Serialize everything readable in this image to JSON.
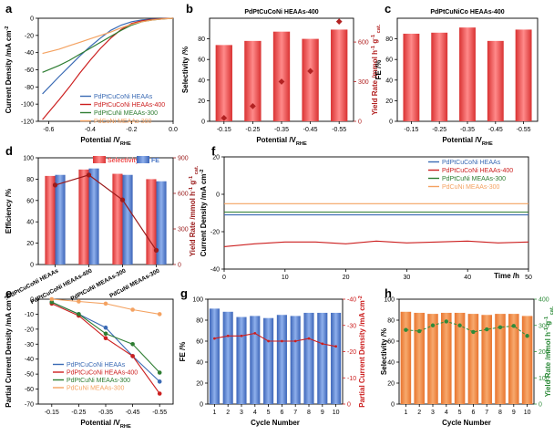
{
  "chart_data": [
    {
      "id": "a",
      "type": "line",
      "panel_letter": "a",
      "xlabel": "Potential /V",
      "xlabel_sub": "RHE",
      "ylabel": "Current Density /mA cm",
      "ylabel_sup": "-2",
      "xlim": [
        -0.65,
        0.0
      ],
      "ylim": [
        -120,
        0
      ],
      "xticks": [
        -0.6,
        -0.4,
        -0.2,
        0.0
      ],
      "xtick_labels": [
        "-0.6",
        "-0.4",
        "-0.2",
        "0.0"
      ],
      "yticks": [
        -120,
        -100,
        -80,
        -60,
        -40,
        -20,
        0
      ],
      "series": [
        {
          "name": "PdPtCuCoNi HEAAs",
          "color": "#3a6ab4",
          "x": [
            -0.63,
            -0.55,
            -0.5,
            -0.45,
            -0.4,
            -0.35,
            -0.3,
            -0.25,
            -0.2,
            -0.15,
            -0.1,
            -0.05,
            0.0
          ],
          "y": [
            -88,
            -68,
            -56,
            -44,
            -33,
            -23,
            -14,
            -8,
            -4,
            -2,
            -1,
            -0.5,
            0
          ]
        },
        {
          "name": "PdPtCuCoNi HEAAs-400",
          "color": "#cc1f1f",
          "x": [
            -0.63,
            -0.55,
            -0.5,
            -0.45,
            -0.4,
            -0.35,
            -0.3,
            -0.25,
            -0.2,
            -0.15,
            -0.1,
            -0.05,
            0.0
          ],
          "y": [
            -118,
            -95,
            -80,
            -64,
            -49,
            -35,
            -23,
            -13,
            -6,
            -3,
            -1.5,
            -0.5,
            0
          ]
        },
        {
          "name": "PdPtCuNi MEAAs-300",
          "color": "#2e7d32",
          "x": [
            -0.63,
            -0.55,
            -0.5,
            -0.45,
            -0.4,
            -0.35,
            -0.3,
            -0.25,
            -0.2,
            -0.15,
            -0.1,
            -0.05,
            0.0
          ],
          "y": [
            -63,
            -55,
            -49,
            -42,
            -35,
            -28,
            -21,
            -14,
            -8,
            -4,
            -2,
            -0.8,
            0
          ]
        },
        {
          "name": "PdCuNi MEAAs-300",
          "color": "#f4a261",
          "x": [
            -0.63,
            -0.55,
            -0.5,
            -0.45,
            -0.4,
            -0.35,
            -0.3,
            -0.25,
            -0.2,
            -0.15,
            -0.1,
            -0.05,
            0.0
          ],
          "y": [
            -41,
            -36,
            -32,
            -28,
            -24,
            -20,
            -16,
            -11,
            -7,
            -4,
            -2,
            -0.8,
            0
          ]
        }
      ]
    },
    {
      "id": "b",
      "type": "bar",
      "panel_letter": "b",
      "title": "PdPtCuCoNi HEAAs-400",
      "categories": [
        "-0.15",
        "-0.25",
        "-0.35",
        "-0.45",
        "-0.55"
      ],
      "xlabel": "Potential /V",
      "xlabel_sub": "RHE",
      "ylabel": "Selectivity /%",
      "ylim": [
        0,
        100
      ],
      "yticks": [
        0,
        20,
        40,
        60,
        80
      ],
      "values": [
        74,
        78,
        87,
        80,
        89
      ],
      "bar_color": "#ef4f4f",
      "y2label": "Yield Rate /mmol h",
      "y2label_tail": "g",
      "y2label_sub": "cat.",
      "y2lim": [
        0,
        780
      ],
      "y2ticks": [
        0,
        300,
        600
      ],
      "y2_values": [
        25,
        115,
        300,
        380,
        755
      ],
      "y2_color": "#b22222"
    },
    {
      "id": "c",
      "type": "bar",
      "panel_letter": "c",
      "title": "PdPtCuNiCo HEAAs-400",
      "categories": [
        "-0.15",
        "-0.25",
        "-0.35",
        "-0.45",
        "-0.55"
      ],
      "xlabel": "Potential /V",
      "xlabel_sub": "RHE",
      "ylabel": "FE /%",
      "ylim": [
        0,
        100
      ],
      "yticks": [
        0,
        20,
        40,
        60,
        80
      ],
      "values": [
        85,
        86,
        91,
        78,
        89
      ],
      "bar_color": "#ef4f4f"
    },
    {
      "id": "d",
      "type": "bar",
      "panel_letter": "d",
      "categories": [
        "PdPtCuCoNi HEAAs",
        "PdPtCuCoNi HEAAs-400",
        "PdPtCuNi MEAAs-300",
        "PdCuNi MEAAs-300"
      ],
      "ylabel": "Efficiency /%",
      "ylim": [
        0,
        100
      ],
      "yticks": [
        0,
        20,
        40,
        60,
        80,
        100
      ],
      "series": [
        {
          "name": "Selectivity",
          "color": "#ef4f4f",
          "values": [
            83,
            89,
            85,
            80
          ]
        },
        {
          "name": "FE",
          "color": "#4472c4",
          "values": [
            84,
            90,
            84,
            78
          ]
        }
      ],
      "y2label": "Yield Rate /mmol h",
      "y2label_tail": "g",
      "y2label_sub": "cat.",
      "y2lim": [
        0,
        900
      ],
      "y2ticks": [
        0,
        300,
        600,
        900
      ],
      "y2_values": [
        670,
        755,
        545,
        120
      ],
      "y2_color": "#9b1b1b"
    },
    {
      "id": "e",
      "type": "line",
      "panel_letter": "e",
      "xlabel": "Potential /V",
      "xlabel_sub": "RHE",
      "ylabel": "Partial Current Density /mA cm",
      "ylabel_sup": "-2",
      "categories": [
        "-0.15",
        "-0.25",
        "-0.35",
        "-0.45",
        "-0.55"
      ],
      "ylim": [
        -70,
        0
      ],
      "yticks": [
        -70,
        -60,
        -50,
        -40,
        -30,
        -20,
        -10,
        0
      ],
      "series": [
        {
          "name": "PdPtCuCoNi HEAAs",
          "color": "#3a6ab4",
          "values": [
            -2,
            -10,
            -19,
            -38,
            -55
          ]
        },
        {
          "name": "PdPtCuCoNi HEAAs-400",
          "color": "#cc1f1f",
          "values": [
            -3,
            -11,
            -26,
            -38,
            -63
          ]
        },
        {
          "name": "PdPtCuNi MEAAs-300",
          "color": "#2e7d32",
          "values": [
            -2,
            -10,
            -23,
            -30,
            -49
          ]
        },
        {
          "name": "PdCuNi MEAAs-300",
          "color": "#f4a261",
          "values": [
            0,
            -1.5,
            -3,
            -7,
            -10
          ]
        }
      ]
    },
    {
      "id": "f",
      "type": "line",
      "panel_letter": "f",
      "xlabel": "Time /h",
      "ylabel": "Current Density /mA cm",
      "ylabel_sup": "-2",
      "xlim": [
        0,
        50
      ],
      "ylim": [
        -40,
        20
      ],
      "xticks": [
        0,
        10,
        20,
        30,
        40,
        50
      ],
      "yticks": [
        -40,
        -20,
        0,
        20
      ],
      "series": [
        {
          "name": "PdPtCuCoNi HEAAs",
          "color": "#3a6ab4",
          "x": [
            0,
            10,
            20,
            30,
            40,
            50
          ],
          "y": [
            -11,
            -11,
            -11,
            -11,
            -11,
            -11
          ]
        },
        {
          "name": "PdPtCuCoNi HEAAs-400",
          "color": "#cc1f1f",
          "x": [
            0,
            5,
            10,
            15,
            20,
            25,
            30,
            35,
            40,
            45,
            50
          ],
          "y": [
            -28,
            -26.5,
            -25.5,
            -25.5,
            -26.5,
            -25,
            -26,
            -25.5,
            -25,
            -26,
            -25.5
          ]
        },
        {
          "name": "PdPtCuNi MEAAs-300",
          "color": "#2e7d32",
          "x": [
            0,
            10,
            20,
            30,
            40,
            50
          ],
          "y": [
            -9.5,
            -9.5,
            -9.5,
            -9.5,
            -9.5,
            -9.5
          ]
        },
        {
          "name": "PdCuNi MEAAs-300",
          "color": "#f4a261",
          "x": [
            0,
            10,
            20,
            30,
            40,
            50
          ],
          "y": [
            -5,
            -5,
            -5,
            -5,
            -5,
            -5
          ]
        }
      ]
    },
    {
      "id": "g",
      "type": "bar",
      "panel_letter": "g",
      "categories": [
        "1",
        "2",
        "3",
        "4",
        "5",
        "6",
        "7",
        "8",
        "9",
        "10"
      ],
      "xlabel": "Cycle Number",
      "ylabel": "FE /%",
      "ylim": [
        0,
        100
      ],
      "yticks": [
        0,
        20,
        40,
        60,
        80,
        100
      ],
      "values": [
        91,
        88,
        83,
        84,
        82,
        85,
        84,
        87,
        87,
        87
      ],
      "bar_color": "#5b8ad6",
      "y2label": "Partial Current Density /mA cm",
      "y2label_sup": "-2",
      "y2lim": [
        0,
        -40
      ],
      "y2ticks": [
        0,
        -10,
        -20,
        -30,
        -40
      ],
      "y2_values": [
        -25,
        -26,
        -26,
        -27,
        -24,
        -24,
        -24,
        -25,
        -23,
        -22
      ],
      "y2_color": "#cc1f1f"
    },
    {
      "id": "h",
      "type": "bar",
      "panel_letter": "h",
      "categories": [
        "1",
        "2",
        "3",
        "4",
        "5",
        "6",
        "7",
        "8",
        "9",
        "10"
      ],
      "xlabel": "Cycle Number",
      "ylabel": "Selectivity /%",
      "ylim": [
        0,
        100
      ],
      "yticks": [
        0,
        20,
        40,
        60,
        80,
        100
      ],
      "values": [
        88,
        87,
        86,
        87,
        87,
        86,
        85,
        86,
        86,
        84
      ],
      "bar_color": "#f08a4b",
      "y2label": "Yield Rate /mmol h",
      "y2label_tail": "g",
      "y2label_sub": "cat.",
      "y2lim": [
        0,
        400
      ],
      "y2ticks": [
        0,
        100,
        200,
        300,
        400
      ],
      "y2_values": [
        283,
        278,
        300,
        315,
        300,
        275,
        285,
        293,
        298,
        260
      ],
      "y2_color": "#2e8b3a"
    }
  ]
}
